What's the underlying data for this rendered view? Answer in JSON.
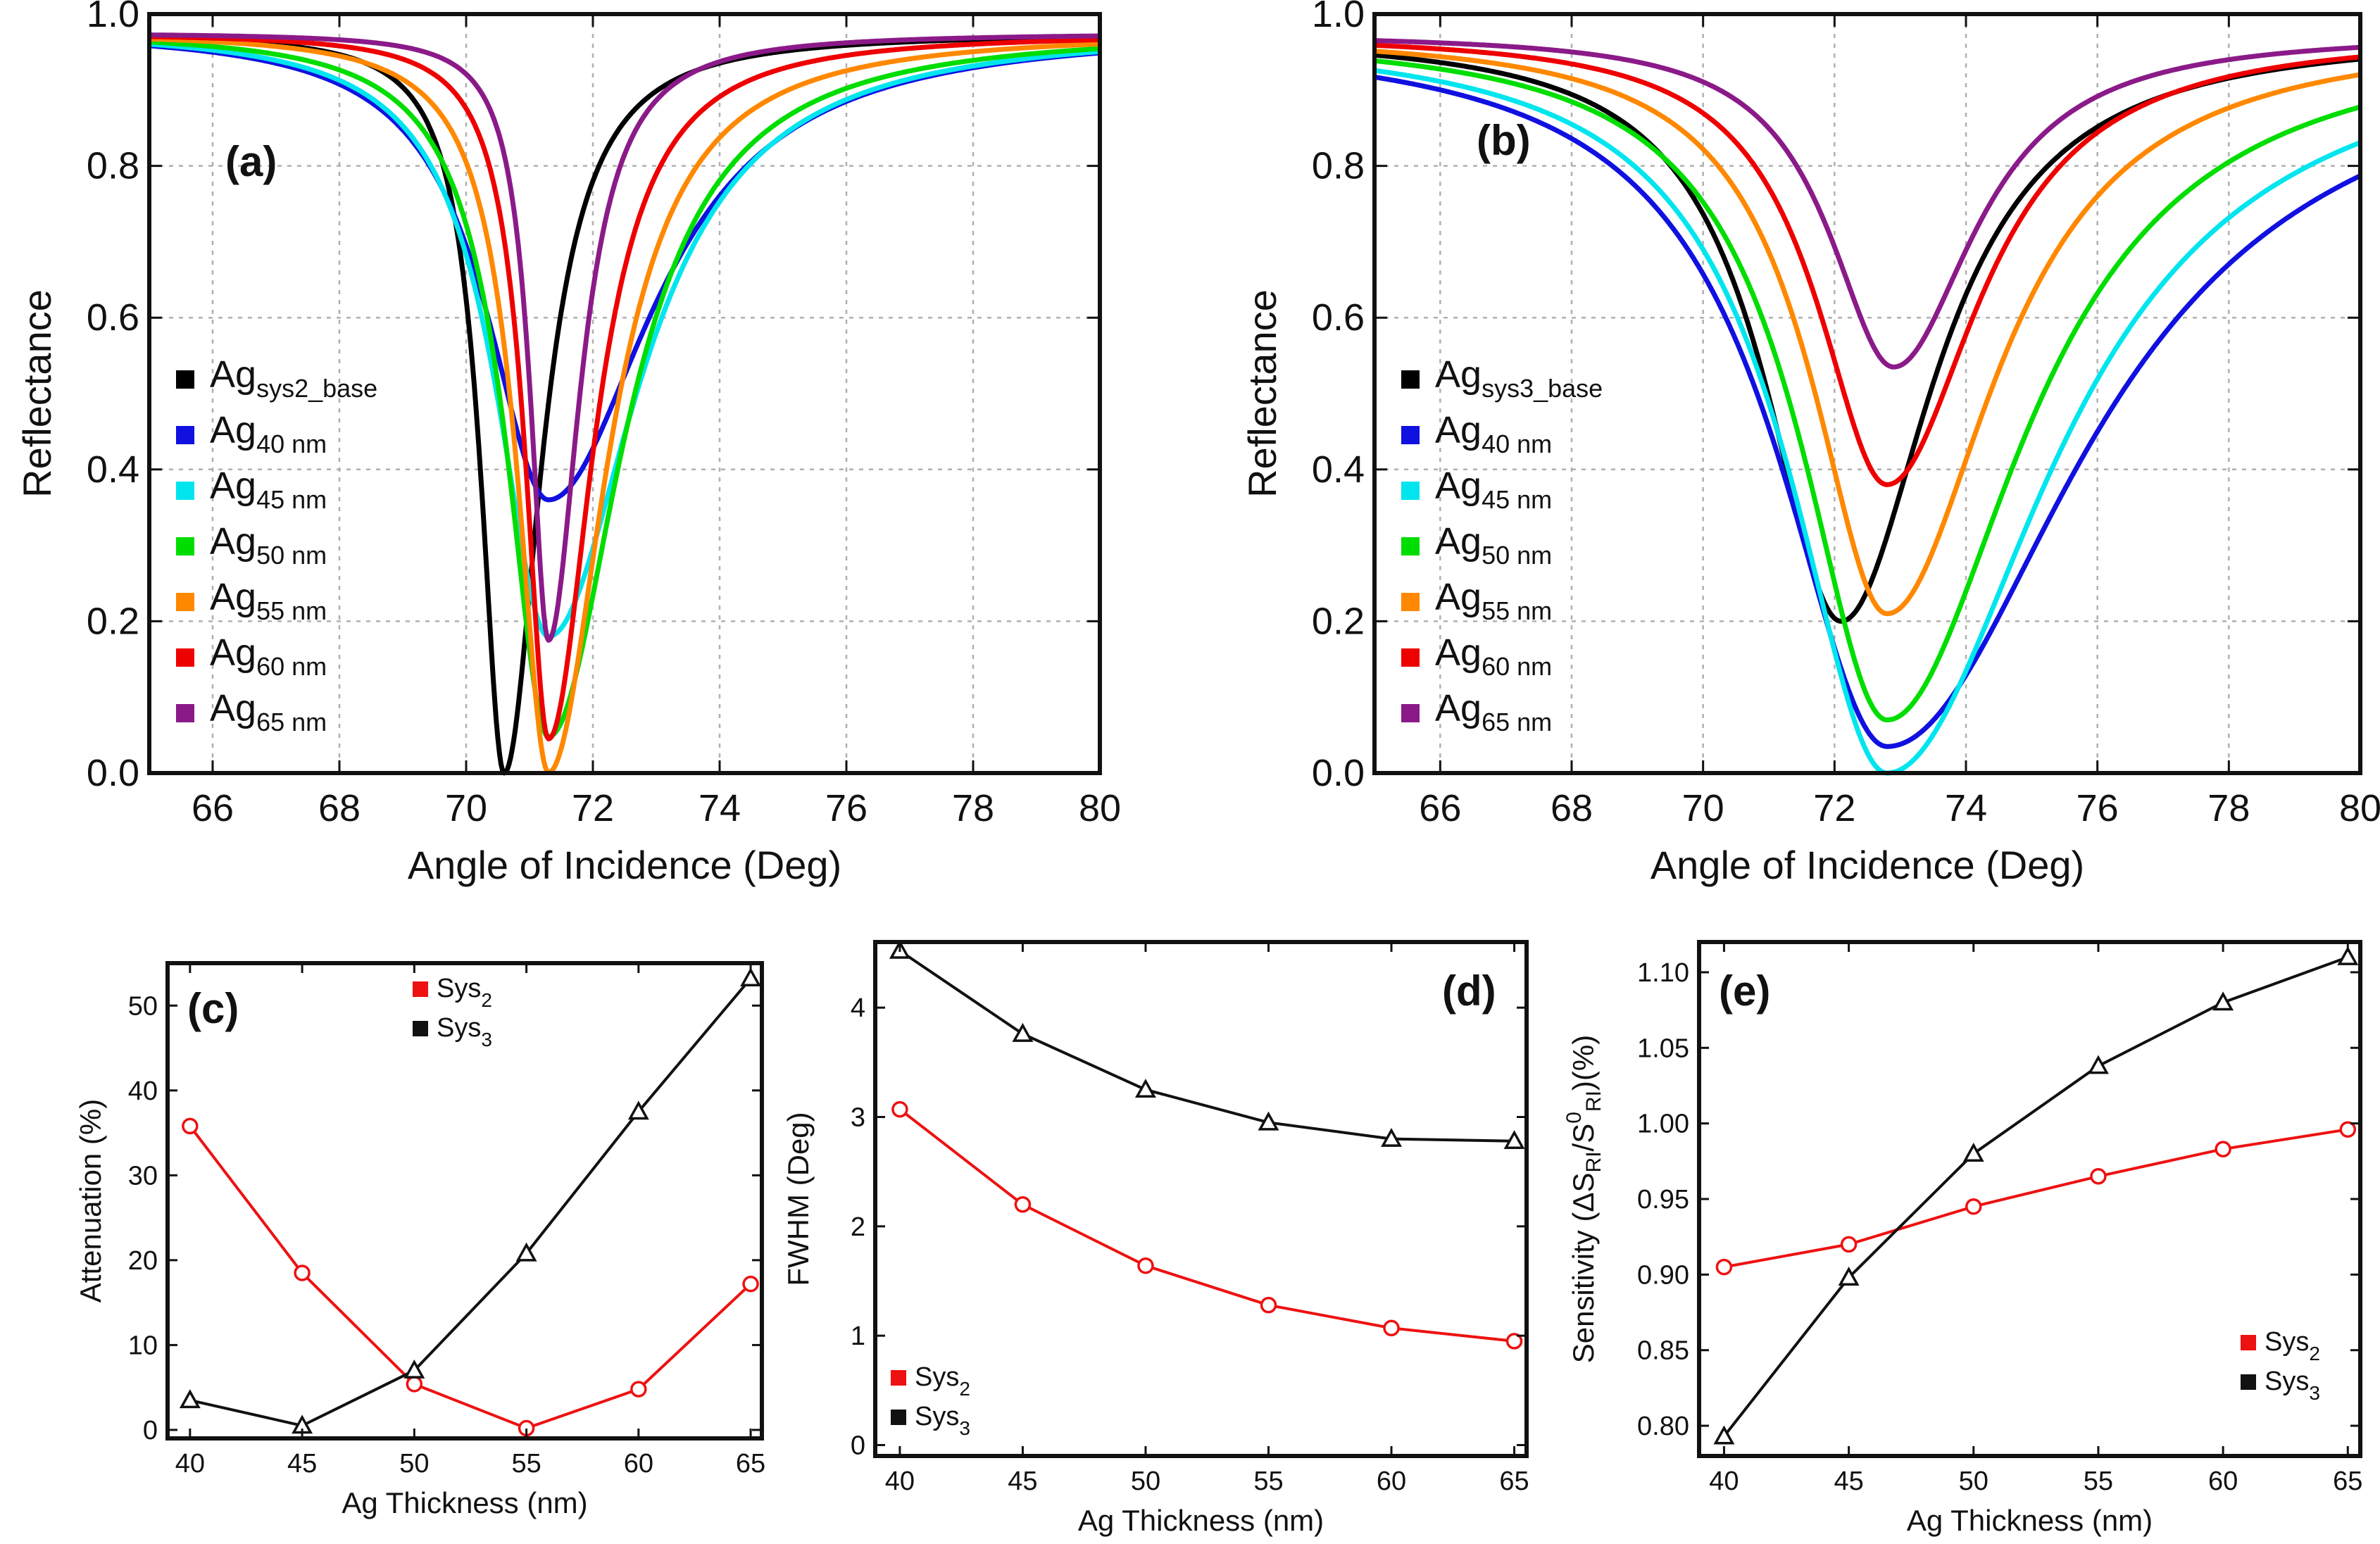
{
  "chart_data": [
    {
      "id": "a",
      "type": "line",
      "panel_label": "(a)",
      "xlabel": "Angle of Incidence (Deg)",
      "ylabel": "Reflectance",
      "xlim": [
        65,
        80
      ],
      "ylim": [
        0,
        1.0
      ],
      "xticks": [
        66,
        68,
        70,
        72,
        74,
        76,
        78,
        80
      ],
      "yticks": [
        0.0,
        0.2,
        0.4,
        0.6,
        0.8,
        1.0
      ],
      "tick_labels_x": [
        "66",
        "68",
        "70",
        "72",
        "74",
        "76",
        "78",
        "80"
      ],
      "tick_labels_y": [
        "0.0",
        "0.2",
        "0.4",
        "0.6",
        "0.8",
        "1.0"
      ],
      "grid": true,
      "legend_position": "middle-left",
      "series": [
        {
          "name": "Ag",
          "sub": "sys2_base",
          "color": "#000000",
          "r0": 0.975,
          "center": 70.6,
          "depth": 0.975,
          "w_left": 0.45,
          "w_right": 0.7
        },
        {
          "name": "Ag",
          "sub": "40 nm",
          "color": "#1010e0",
          "r0": 0.98,
          "center": 71.3,
          "depth": 0.62,
          "w_left": 1.2,
          "w_right": 2.0
        },
        {
          "name": "Ag",
          "sub": "45 nm",
          "color": "#00e5ee",
          "r0": 0.98,
          "center": 71.3,
          "depth": 0.8,
          "w_left": 1.0,
          "w_right": 1.7
        },
        {
          "name": "Ag",
          "sub": "50 nm",
          "color": "#00dd00",
          "r0": 0.978,
          "center": 71.3,
          "depth": 0.93,
          "w_left": 0.8,
          "w_right": 1.4
        },
        {
          "name": "Ag",
          "sub": "55 nm",
          "color": "#ff8800",
          "r0": 0.976,
          "center": 71.3,
          "depth": 0.975,
          "w_left": 0.6,
          "w_right": 1.1
        },
        {
          "name": "Ag",
          "sub": "60 nm",
          "color": "#ee0000",
          "r0": 0.975,
          "center": 71.3,
          "depth": 0.93,
          "w_left": 0.45,
          "w_right": 0.85
        },
        {
          "name": "Ag",
          "sub": "65 nm",
          "color": "#8b1a89",
          "r0": 0.975,
          "center": 71.3,
          "depth": 0.8,
          "w_left": 0.35,
          "w_right": 0.6
        }
      ]
    },
    {
      "id": "b",
      "type": "line",
      "panel_label": "(b)",
      "xlabel": "Angle of Incidence (Deg)",
      "ylabel": "Reflectance",
      "xlim": [
        65,
        80
      ],
      "ylim": [
        0,
        1.0
      ],
      "xticks": [
        66,
        68,
        70,
        72,
        74,
        76,
        78,
        80
      ],
      "yticks": [
        0.0,
        0.2,
        0.4,
        0.6,
        0.8,
        1.0
      ],
      "tick_labels_x": [
        "66",
        "68",
        "70",
        "72",
        "74",
        "76",
        "78",
        "80"
      ],
      "tick_labels_y": [
        "0.0",
        "0.2",
        "0.4",
        "0.6",
        "0.8",
        "1.0"
      ],
      "grid": true,
      "legend_position": "middle-left",
      "series": [
        {
          "name": "Ag",
          "sub": "sys3_base",
          "color": "#000000",
          "r0": 0.975,
          "center": 72.1,
          "depth": 0.775,
          "w_left": 1.4,
          "w_right": 1.7
        },
        {
          "name": "Ag",
          "sub": "40 nm",
          "color": "#1010e0",
          "r0": 0.975,
          "center": 72.8,
          "depth": 0.94,
          "w_left": 2.0,
          "w_right": 3.6
        },
        {
          "name": "Ag",
          "sub": "45 nm",
          "color": "#00e5ee",
          "r0": 0.975,
          "center": 72.8,
          "depth": 0.975,
          "w_left": 1.8,
          "w_right": 3.0
        },
        {
          "name": "Ag",
          "sub": "50 nm",
          "color": "#00dd00",
          "r0": 0.975,
          "center": 72.8,
          "depth": 0.905,
          "w_left": 1.6,
          "w_right": 2.5
        },
        {
          "name": "Ag",
          "sub": "55 nm",
          "color": "#ff8800",
          "r0": 0.975,
          "center": 72.8,
          "depth": 0.765,
          "w_left": 1.4,
          "w_right": 2.0
        },
        {
          "name": "Ag",
          "sub": "60 nm",
          "color": "#ee0000",
          "r0": 0.975,
          "center": 72.8,
          "depth": 0.595,
          "w_left": 1.3,
          "w_right": 1.7
        },
        {
          "name": "Ag",
          "sub": "65 nm",
          "color": "#8b1a89",
          "r0": 0.975,
          "center": 72.9,
          "depth": 0.44,
          "w_left": 1.2,
          "w_right": 1.5
        }
      ]
    },
    {
      "id": "c",
      "type": "line",
      "panel_label": "(c)",
      "xlabel": "Ag Thickness (nm)",
      "ylabel": "Attenuation (%)",
      "xlim": [
        39,
        65.5
      ],
      "ylim": [
        -1,
        55
      ],
      "x": [
        40,
        45,
        50,
        55,
        60,
        65
      ],
      "tick_labels_x": [
        "40",
        "45",
        "50",
        "55",
        "60",
        "65"
      ],
      "yticks": [
        0,
        10,
        20,
        30,
        40,
        50
      ],
      "tick_labels_y": [
        "0",
        "10",
        "20",
        "30",
        "40",
        "50"
      ],
      "grid": false,
      "legend_position": "top-center",
      "series": [
        {
          "name": "Sys",
          "sub": "2",
          "color": "#ee1111",
          "marker": "circle",
          "values": [
            35.8,
            18.5,
            5.4,
            0.2,
            4.8,
            17.2
          ]
        },
        {
          "name": "Sys",
          "sub": "3",
          "color": "#111111",
          "marker": "triangle",
          "values": [
            3.5,
            0.5,
            7.0,
            20.8,
            37.5,
            53.2
          ]
        }
      ]
    },
    {
      "id": "d",
      "type": "line",
      "panel_label": "(d)",
      "xlabel": "Ag Thickness (nm)",
      "ylabel": "FWHM (Deg)",
      "xlim": [
        39,
        65.5
      ],
      "ylim": [
        -0.1,
        4.6
      ],
      "x": [
        40,
        45,
        50,
        55,
        60,
        65
      ],
      "tick_labels_x": [
        "40",
        "45",
        "50",
        "55",
        "60",
        "65"
      ],
      "yticks": [
        0,
        1,
        2,
        3,
        4
      ],
      "tick_labels_y": [
        "0",
        "1",
        "2",
        "3",
        "4"
      ],
      "grid": false,
      "legend_position": "bottom-left",
      "series": [
        {
          "name": "Sys",
          "sub": "2",
          "color": "#ee1111",
          "marker": "circle",
          "values": [
            3.07,
            2.2,
            1.64,
            1.28,
            1.07,
            0.95
          ]
        },
        {
          "name": "Sys",
          "sub": "3",
          "color": "#111111",
          "marker": "triangle",
          "values": [
            4.52,
            3.76,
            3.25,
            2.95,
            2.8,
            2.78
          ]
        }
      ]
    },
    {
      "id": "e",
      "type": "line",
      "panel_label": "(e)",
      "xlabel": "Ag Thickness (nm)",
      "ylabel": "Sensitivity (ΔS",
      "ylabel_sub1": "RI",
      "ylabel_mid": "/S",
      "ylabel_sup": "0",
      "ylabel_sub2": "RI",
      "ylabel_end": ")(%)",
      "xlim": [
        39,
        65.5
      ],
      "ylim": [
        0.78,
        1.12
      ],
      "x": [
        40,
        45,
        50,
        55,
        60,
        65
      ],
      "tick_labels_x": [
        "40",
        "45",
        "50",
        "55",
        "60",
        "65"
      ],
      "yticks": [
        0.8,
        0.85,
        0.9,
        0.95,
        1.0,
        1.05,
        1.1
      ],
      "tick_labels_y": [
        "0.80",
        "0.85",
        "0.90",
        "0.95",
        "1.00",
        "1.05",
        "1.10"
      ],
      "grid": false,
      "legend_position": "bottom-right",
      "series": [
        {
          "name": "Sys",
          "sub": "2",
          "color": "#ee1111",
          "marker": "circle",
          "values": [
            0.905,
            0.92,
            0.945,
            0.965,
            0.983,
            0.996
          ]
        },
        {
          "name": "Sys",
          "sub": "3",
          "color": "#111111",
          "marker": "triangle",
          "values": [
            0.793,
            0.898,
            0.98,
            1.038,
            1.08,
            1.11
          ]
        }
      ]
    }
  ]
}
